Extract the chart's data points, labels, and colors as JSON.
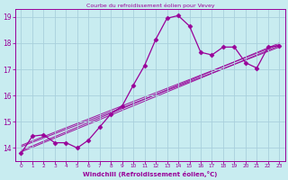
{
  "title": "Courbe du refroidissement éolien pour Vevey",
  "xlabel": "Windchill (Refroidissement éolien,°C)",
  "xlim": [
    -0.5,
    23.5
  ],
  "ylim": [
    13.5,
    19.3
  ],
  "yticks": [
    14,
    15,
    16,
    17,
    18,
    19
  ],
  "xticks": [
    0,
    1,
    2,
    3,
    4,
    5,
    6,
    7,
    8,
    9,
    10,
    11,
    12,
    13,
    14,
    15,
    16,
    17,
    18,
    19,
    20,
    21,
    22,
    23
  ],
  "bg_color": "#c8ecf0",
  "grid_color": "#a8d0dc",
  "line_color": "#990099",
  "main_series_x": [
    0,
    1,
    2,
    3,
    4,
    5,
    6,
    7,
    8,
    9,
    10,
    11,
    12,
    13,
    14,
    15,
    16,
    17,
    18,
    19,
    20,
    21,
    22,
    23
  ],
  "main_series_y": [
    13.8,
    14.45,
    14.5,
    14.2,
    14.2,
    14.0,
    14.3,
    14.8,
    15.3,
    15.6,
    16.4,
    17.15,
    18.15,
    18.95,
    19.05,
    18.65,
    17.65,
    17.55,
    17.85,
    17.85,
    17.25,
    17.05,
    17.85,
    17.9
  ],
  "trend_lines": [
    {
      "x": [
        0,
        23
      ],
      "y": [
        13.85,
        17.9
      ]
    },
    {
      "x": [
        0,
        23
      ],
      "y": [
        13.9,
        18.0
      ]
    },
    {
      "x": [
        0,
        23
      ],
      "y": [
        14.05,
        17.85
      ]
    },
    {
      "x": [
        0,
        23
      ],
      "y": [
        14.1,
        17.95
      ]
    }
  ],
  "line_width": 0.9,
  "marker": "D",
  "marker_size": 2.5
}
